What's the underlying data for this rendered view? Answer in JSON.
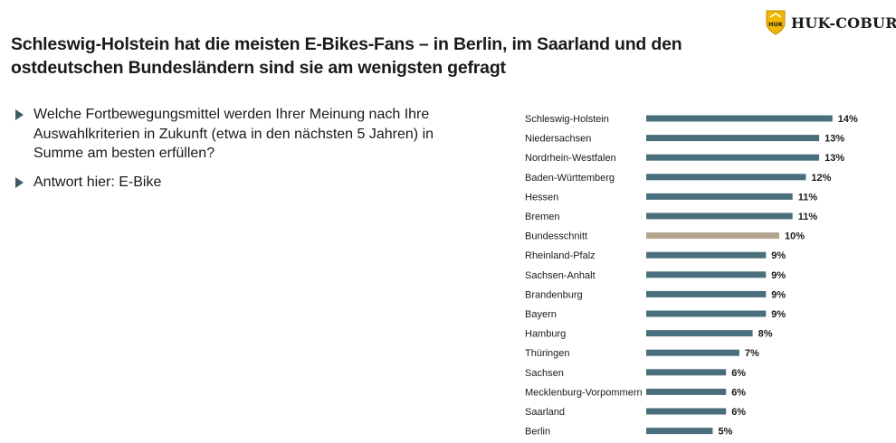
{
  "header": {
    "title": "Schleswig-Holstein hat die meisten E-Bikes-Fans – in Berlin, im Saarland und den ostdeutschen Bundesländern sind sie am wenigsten gefragt",
    "logo_text": "HUK-COBURG"
  },
  "bullets": [
    "Welche Fortbewegungsmittel werden Ihrer Meinung nach Ihre Auswahlkriterien in Zukunft (etwa in den nächsten 5 Jahren) in Summe am besten erfüllen?",
    "Antwort hier: E-Bike"
  ],
  "colors": {
    "bar": "#4a6f7c",
    "highlight_bar": "#b3a48f",
    "logo_yellow": "#f2b705"
  },
  "chart_data": {
    "type": "bar",
    "orientation": "horizontal",
    "categories": [
      "Schleswig-Holstein",
      "Niedersachsen",
      "Nordrhein-Westfalen",
      "Baden-Württemberg",
      "Hessen",
      "Bremen",
      "Bundesschnitt",
      "Rheinland-Pfalz",
      "Sachsen-Anhalt",
      "Brandenburg",
      "Bayern",
      "Hamburg",
      "Thüringen",
      "Sachsen",
      "Mecklenburg-Vorpommern",
      "Saarland",
      "Berlin"
    ],
    "values": [
      14,
      13,
      13,
      12,
      11,
      11,
      10,
      9,
      9,
      9,
      9,
      8,
      7,
      6,
      6,
      6,
      5
    ],
    "value_labels": [
      "14%",
      "13%",
      "13%",
      "12%",
      "11%",
      "11%",
      "10%",
      "9%",
      "9%",
      "9%",
      "9%",
      "8%",
      "7%",
      "6%",
      "6%",
      "6%",
      "5%"
    ],
    "highlight_category": "Bundesschnitt",
    "grid": false
  }
}
